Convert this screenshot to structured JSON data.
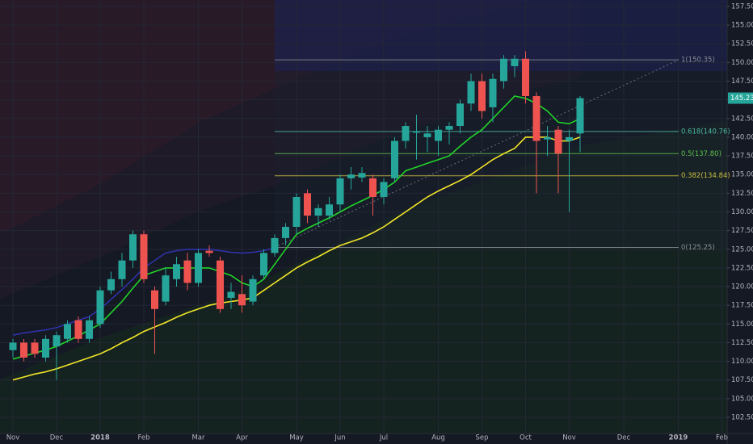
{
  "chart_data": {
    "type": "candlestick",
    "categories": [
      "Nov",
      null,
      null,
      null,
      "Dec",
      null,
      null,
      null,
      "2018",
      null,
      null,
      null,
      "Feb",
      null,
      null,
      null,
      null,
      "Mar",
      null,
      null,
      null,
      "Apr",
      null,
      null,
      null,
      null,
      "May",
      null,
      null,
      null,
      "Jun",
      null,
      null,
      null,
      "Jul",
      null,
      null,
      null,
      null,
      "Aug",
      null,
      null,
      null,
      "Sep",
      null,
      null,
      null,
      "Oct",
      null,
      null,
      null,
      "Nov",
      null,
      null,
      null,
      null,
      "Dec",
      null,
      null,
      null,
      null,
      "2019",
      null,
      null,
      null,
      "Feb"
    ],
    "open": [
      111.5,
      112.5,
      112.5,
      110.5,
      112,
      113,
      115.5,
      113,
      115,
      119.5,
      121,
      123.5,
      127,
      119.5,
      118,
      121,
      123.5,
      120.5,
      124.8,
      123.5,
      118.5,
      119,
      118,
      121.5,
      124.5,
      126.5,
      128,
      132.5,
      129.5,
      129.5,
      131,
      134.5,
      134.6,
      134.5,
      132,
      134.5,
      139.5,
      140.6,
      140,
      139.5,
      141,
      141.5,
      144.5,
      147.5,
      144,
      147.5,
      149.5,
      150.5,
      145.5,
      139.7,
      141,
      139.5,
      140.5,
      null,
      null,
      null,
      null,
      null,
      null,
      null,
      null,
      null,
      null,
      null,
      null,
      null
    ],
    "high": [
      113,
      113,
      113,
      113.5,
      114,
      115.5,
      116,
      116,
      120,
      122,
      124.5,
      127.5,
      127.5,
      120,
      122.5,
      124,
      124.5,
      125,
      125.5,
      124,
      120.5,
      121.5,
      121.5,
      125,
      127,
      128.5,
      132.5,
      133,
      131,
      132,
      135,
      136,
      136,
      135,
      134.5,
      140,
      142,
      143,
      141.5,
      141.5,
      142,
      145,
      148.5,
      148.5,
      148.5,
      151,
      151,
      151.5,
      146,
      141.5,
      141.5,
      141,
      145.5,
      null,
      null,
      null,
      null,
      null,
      null,
      null,
      null,
      null,
      null,
      null,
      null,
      null
    ],
    "low": [
      110.5,
      110,
      110.5,
      110,
      107.5,
      112.5,
      112.5,
      112.5,
      114.5,
      119,
      120,
      122.5,
      120.5,
      111,
      117.5,
      120,
      119.5,
      120,
      124,
      116.5,
      117,
      116.5,
      117.5,
      121,
      124,
      125.5,
      127,
      128.5,
      128,
      129,
      130,
      133,
      134,
      129.5,
      131,
      134,
      138.5,
      137,
      138,
      137.5,
      139,
      140.5,
      143.5,
      142.5,
      142,
      146.5,
      148,
      144.5,
      132.5,
      137.5,
      132.5,
      130,
      138,
      null,
      null,
      null,
      null,
      null,
      null,
      null,
      null,
      null,
      null,
      null,
      null,
      null
    ],
    "close": [
      112.5,
      110.5,
      111,
      113,
      113.5,
      115,
      113,
      115.5,
      119.5,
      121,
      123.5,
      127,
      121,
      117,
      121.5,
      123,
      120.5,
      124.5,
      124.5,
      117,
      119.3,
      117.5,
      121,
      124.5,
      126.5,
      128,
      132,
      129.5,
      130.5,
      131,
      134.5,
      135,
      135.2,
      132,
      134,
      139.5,
      141.5,
      140.8,
      140.5,
      141,
      141.5,
      144.5,
      147.5,
      143.5,
      147.8,
      150.5,
      150.5,
      145.5,
      139.5,
      140,
      137.8,
      140,
      145.23,
      null,
      null,
      null,
      null,
      null,
      null,
      null,
      null,
      null,
      null,
      null,
      null,
      null
    ],
    "up_color": "#26a69a",
    "down_color": "#ef5350",
    "series": [
      {
        "color": "#2e32a8",
        "values": [
          113.5,
          113.8,
          114,
          114.2,
          114.5,
          115,
          115.5,
          116,
          117,
          118.3,
          119.6,
          121,
          122.5,
          123.5,
          124.5,
          124.8,
          125,
          125,
          125,
          124.8,
          124.6,
          124.5,
          124.6,
          124.8,
          125.2,
          null,
          null,
          null,
          null,
          null,
          null,
          null,
          null,
          null,
          null,
          null,
          null,
          null,
          null,
          null,
          null,
          null,
          null,
          null,
          null,
          null,
          null,
          null,
          null,
          null,
          null,
          null,
          null,
          null,
          null,
          null,
          null,
          null,
          null,
          null,
          null,
          null,
          null,
          null,
          null,
          null
        ]
      },
      {
        "color": "#22d42a",
        "values": [
          110.3,
          110.7,
          111.1,
          111.5,
          112,
          112.7,
          113.4,
          114.2,
          115,
          116.5,
          118,
          119.8,
          121.5,
          122,
          122.5,
          122.5,
          122.5,
          122.5,
          122.5,
          122,
          121.5,
          120.5,
          120,
          121,
          123,
          125,
          127,
          127.8,
          128.5,
          129.2,
          130,
          130.8,
          131.5,
          132.2,
          133,
          134,
          135.5,
          136,
          136.5,
          137,
          137.5,
          138.8,
          140,
          141,
          142.5,
          144,
          145.5,
          145.2,
          144.5,
          143.5,
          142,
          141.8,
          142.5,
          null,
          null,
          null,
          null,
          null,
          null,
          null,
          null,
          null,
          null,
          null,
          null,
          null
        ]
      },
      {
        "color": "#f2e52a",
        "values": [
          107.5,
          107.9,
          108.3,
          108.6,
          109,
          109.5,
          110,
          110.5,
          111,
          111.7,
          112.5,
          113.2,
          114,
          114.6,
          115.2,
          115.9,
          116.5,
          117,
          117.5,
          117.8,
          118,
          118.2,
          118.5,
          119.5,
          120.5,
          121.5,
          122.5,
          123.3,
          124,
          124.8,
          125.5,
          126,
          126.5,
          127.2,
          128,
          129,
          130,
          131,
          132,
          132.8,
          133.5,
          134.2,
          135,
          136,
          137,
          137.8,
          138.5,
          140,
          140,
          140,
          139.5,
          139.5,
          140,
          null,
          null,
          null,
          null,
          null,
          null,
          null,
          null,
          null,
          null,
          null,
          null,
          null
        ]
      }
    ],
    "fib": [
      {
        "value": 150.35,
        "label": "1(150.35)",
        "color": "#8a8d96"
      },
      {
        "value": 140.76,
        "label": "0.618(140.76)",
        "color": "#4fb8a8"
      },
      {
        "value": 137.8,
        "label": "0.5(137.80)",
        "color": "#5cbf4f"
      },
      {
        "value": 134.84,
        "label": "0.382(134.84)",
        "color": "#c9bd3e"
      },
      {
        "value": 125.25,
        "label": "0(125.25)",
        "color": "#8a8d96"
      }
    ],
    "last_price": 145.23,
    "ylim": [
      100.34,
      158.36
    ],
    "yticks": [
      {
        "value": 102.5,
        "label": "102.50"
      },
      {
        "value": 105,
        "label": "105.00"
      },
      {
        "value": 107.5,
        "label": "107.50"
      },
      {
        "value": 110,
        "label": "110.00"
      },
      {
        "value": 112.5,
        "label": "112.50"
      },
      {
        "value": 115,
        "label": "115.00"
      },
      {
        "value": 117.5,
        "label": "117.50"
      },
      {
        "value": 120,
        "label": "120.00"
      },
      {
        "value": 122.5,
        "label": "122.50"
      },
      {
        "value": 125,
        "label": "125.00"
      },
      {
        "value": 127.5,
        "label": "127.50"
      },
      {
        "value": 130,
        "label": "130.00"
      },
      {
        "value": 132.5,
        "label": "132.50"
      },
      {
        "value": 135,
        "label": "135.00"
      },
      {
        "value": 137.5,
        "label": "137.50"
      },
      {
        "value": 140,
        "label": "140.00"
      },
      {
        "value": 142.5,
        "label": "142.50"
      },
      {
        "value": 145,
        "label": "145.00"
      },
      {
        "value": 147.5,
        "label": "147.50"
      },
      {
        "value": 150,
        "label": "150.00"
      },
      {
        "value": 152.5,
        "label": "152.50"
      },
      {
        "value": 155,
        "label": "155.00"
      },
      {
        "value": 157.5,
        "label": "157.50"
      }
    ],
    "grid": true
  }
}
